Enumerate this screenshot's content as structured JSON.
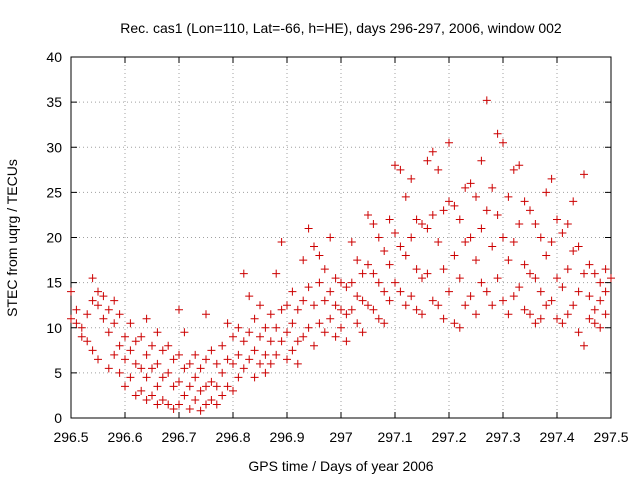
{
  "chart_data": {
    "type": "scatter",
    "title": "Rec. cas1 (Lon=110, Lat=-66, h=HE), days 296-297, 2006, window 002",
    "xlabel": "GPS time / Days of year 2006",
    "ylabel": "STEC from uqrg / TECUs",
    "xlim": [
      296.5,
      297.5
    ],
    "ylim": [
      0,
      40
    ],
    "x_ticks": [
      296.5,
      296.6,
      296.7,
      296.8,
      296.9,
      297,
      297.1,
      297.2,
      297.3,
      297.4,
      297.5
    ],
    "x_tick_labels": [
      "296.5",
      "296.6",
      "296.7",
      "296.8",
      "296.9",
      "297",
      "297.1",
      "297.2",
      "297.3",
      "297.4",
      "297.5"
    ],
    "y_ticks": [
      0,
      5,
      10,
      15,
      20,
      25,
      30,
      35,
      40
    ],
    "y_tick_labels": [
      "0",
      "5",
      "10",
      "15",
      "20",
      "25",
      "30",
      "35",
      "40"
    ],
    "grid": true,
    "marker": "plus",
    "color": "#cc0000",
    "points": [
      [
        296.5,
        14.0
      ],
      [
        296.5,
        11.0
      ],
      [
        296.51,
        10.5
      ],
      [
        296.51,
        12.0
      ],
      [
        296.52,
        9.0
      ],
      [
        296.52,
        10.0
      ],
      [
        296.53,
        11.5
      ],
      [
        296.53,
        8.5
      ],
      [
        296.54,
        15.5
      ],
      [
        296.54,
        13.0
      ],
      [
        296.54,
        7.5
      ],
      [
        296.55,
        12.5
      ],
      [
        296.55,
        14.0
      ],
      [
        296.55,
        6.5
      ],
      [
        296.56,
        13.5
      ],
      [
        296.56,
        11.0
      ],
      [
        296.57,
        12.0
      ],
      [
        296.57,
        9.5
      ],
      [
        296.57,
        5.5
      ],
      [
        296.58,
        13.0
      ],
      [
        296.58,
        10.5
      ],
      [
        296.58,
        7.0
      ],
      [
        296.59,
        11.5
      ],
      [
        296.59,
        8.0
      ],
      [
        296.59,
        5.0
      ],
      [
        296.6,
        9.0
      ],
      [
        296.6,
        6.5
      ],
      [
        296.6,
        3.5
      ],
      [
        296.61,
        10.5
      ],
      [
        296.61,
        7.5
      ],
      [
        296.61,
        4.5
      ],
      [
        296.62,
        8.5
      ],
      [
        296.62,
        6.0
      ],
      [
        296.62,
        2.5
      ],
      [
        296.63,
        9.0
      ],
      [
        296.63,
        5.5
      ],
      [
        296.63,
        3.0
      ],
      [
        296.64,
        11.0
      ],
      [
        296.64,
        7.0
      ],
      [
        296.64,
        4.5
      ],
      [
        296.64,
        2.0
      ],
      [
        296.65,
        8.0
      ],
      [
        296.65,
        5.5
      ],
      [
        296.65,
        2.5
      ],
      [
        296.66,
        9.5
      ],
      [
        296.66,
        6.0
      ],
      [
        296.66,
        3.5
      ],
      [
        296.66,
        1.5
      ],
      [
        296.67,
        7.5
      ],
      [
        296.67,
        4.5
      ],
      [
        296.67,
        2.0
      ],
      [
        296.68,
        8.0
      ],
      [
        296.68,
        5.0
      ],
      [
        296.68,
        1.5
      ],
      [
        296.69,
        6.5
      ],
      [
        296.69,
        3.5
      ],
      [
        296.69,
        1.0
      ],
      [
        296.7,
        12.0
      ],
      [
        296.7,
        7.0
      ],
      [
        296.7,
        4.0
      ],
      [
        296.7,
        1.5
      ],
      [
        296.71,
        9.5
      ],
      [
        296.71,
        5.5
      ],
      [
        296.71,
        2.5
      ],
      [
        296.72,
        6.0
      ],
      [
        296.72,
        3.5
      ],
      [
        296.72,
        1.0
      ],
      [
        296.73,
        7.0
      ],
      [
        296.73,
        4.5
      ],
      [
        296.73,
        2.0
      ],
      [
        296.74,
        5.5
      ],
      [
        296.74,
        3.0
      ],
      [
        296.74,
        0.8
      ],
      [
        296.75,
        11.5
      ],
      [
        296.75,
        6.5
      ],
      [
        296.75,
        3.5
      ],
      [
        296.75,
        1.5
      ],
      [
        296.76,
        7.5
      ],
      [
        296.76,
        4.0
      ],
      [
        296.76,
        2.0
      ],
      [
        296.77,
        6.0
      ],
      [
        296.77,
        3.5
      ],
      [
        296.77,
        1.5
      ],
      [
        296.78,
        8.0
      ],
      [
        296.78,
        5.0
      ],
      [
        296.78,
        2.5
      ],
      [
        296.79,
        10.5
      ],
      [
        296.79,
        6.5
      ],
      [
        296.79,
        3.5
      ],
      [
        296.8,
        9.0
      ],
      [
        296.8,
        6.0
      ],
      [
        296.8,
        3.0
      ],
      [
        296.81,
        10.0
      ],
      [
        296.81,
        7.0
      ],
      [
        296.81,
        4.5
      ],
      [
        296.82,
        16.0
      ],
      [
        296.82,
        8.5
      ],
      [
        296.82,
        5.5
      ],
      [
        296.83,
        13.5
      ],
      [
        296.83,
        9.5
      ],
      [
        296.83,
        6.5
      ],
      [
        296.84,
        11.0
      ],
      [
        296.84,
        7.5
      ],
      [
        296.84,
        4.5
      ],
      [
        296.85,
        12.5
      ],
      [
        296.85,
        9.0
      ],
      [
        296.85,
        6.0
      ],
      [
        296.86,
        10.0
      ],
      [
        296.86,
        7.0
      ],
      [
        296.86,
        5.0
      ],
      [
        296.87,
        11.5
      ],
      [
        296.87,
        8.5
      ],
      [
        296.87,
        6.0
      ],
      [
        296.88,
        16.0
      ],
      [
        296.88,
        10.0
      ],
      [
        296.88,
        7.0
      ],
      [
        296.89,
        19.5
      ],
      [
        296.89,
        12.0
      ],
      [
        296.89,
        8.5
      ],
      [
        296.9,
        12.5
      ],
      [
        296.9,
        9.5
      ],
      [
        296.9,
        6.5
      ],
      [
        296.91,
        14.0
      ],
      [
        296.91,
        10.5
      ],
      [
        296.91,
        7.5
      ],
      [
        296.92,
        12.0
      ],
      [
        296.92,
        8.5
      ],
      [
        296.92,
        6.0
      ],
      [
        296.93,
        17.5
      ],
      [
        296.93,
        13.0
      ],
      [
        296.93,
        9.0
      ],
      [
        296.94,
        21.0
      ],
      [
        296.94,
        14.5
      ],
      [
        296.94,
        10.0
      ],
      [
        296.95,
        19.0
      ],
      [
        296.95,
        12.5
      ],
      [
        296.95,
        8.0
      ],
      [
        296.96,
        18.0
      ],
      [
        296.96,
        15.0
      ],
      [
        296.96,
        10.5
      ],
      [
        296.97,
        16.5
      ],
      [
        296.97,
        13.0
      ],
      [
        296.97,
        9.5
      ],
      [
        296.98,
        20.0
      ],
      [
        296.98,
        14.0
      ],
      [
        296.98,
        11.0
      ],
      [
        296.99,
        15.5
      ],
      [
        296.99,
        12.5
      ],
      [
        296.99,
        9.0
      ],
      [
        297.0,
        15.0
      ],
      [
        297.0,
        12.0
      ],
      [
        297.0,
        10.0
      ],
      [
        297.01,
        14.5
      ],
      [
        297.01,
        11.5
      ],
      [
        297.01,
        8.5
      ],
      [
        297.02,
        19.5
      ],
      [
        297.02,
        15.0
      ],
      [
        297.02,
        12.0
      ],
      [
        297.03,
        17.5
      ],
      [
        297.03,
        13.5
      ],
      [
        297.03,
        10.5
      ],
      [
        297.04,
        16.0
      ],
      [
        297.04,
        13.0
      ],
      [
        297.04,
        9.5
      ],
      [
        297.05,
        22.5
      ],
      [
        297.05,
        17.0
      ],
      [
        297.05,
        12.5
      ],
      [
        297.06,
        21.5
      ],
      [
        297.06,
        16.0
      ],
      [
        297.06,
        12.0
      ],
      [
        297.07,
        20.0
      ],
      [
        297.07,
        15.0
      ],
      [
        297.07,
        11.0
      ],
      [
        297.08,
        18.5
      ],
      [
        297.08,
        14.0
      ],
      [
        297.08,
        10.5
      ],
      [
        297.09,
        22.0
      ],
      [
        297.09,
        17.0
      ],
      [
        297.09,
        13.0
      ],
      [
        297.1,
        28.0
      ],
      [
        297.1,
        20.5
      ],
      [
        297.1,
        15.0
      ],
      [
        297.11,
        27.5
      ],
      [
        297.11,
        19.0
      ],
      [
        297.11,
        14.0
      ],
      [
        297.12,
        24.5
      ],
      [
        297.12,
        18.0
      ],
      [
        297.12,
        12.5
      ],
      [
        297.13,
        26.5
      ],
      [
        297.13,
        20.0
      ],
      [
        297.13,
        13.5
      ],
      [
        297.14,
        22.0
      ],
      [
        297.14,
        16.5
      ],
      [
        297.14,
        12.0
      ],
      [
        297.15,
        21.5
      ],
      [
        297.15,
        15.5
      ],
      [
        297.15,
        11.5
      ],
      [
        297.16,
        28.5
      ],
      [
        297.16,
        21.0
      ],
      [
        297.16,
        16.0
      ],
      [
        297.17,
        29.5
      ],
      [
        297.17,
        22.5
      ],
      [
        297.17,
        13.0
      ],
      [
        297.18,
        27.5
      ],
      [
        297.18,
        19.5
      ],
      [
        297.18,
        12.5
      ],
      [
        297.19,
        23.0
      ],
      [
        297.19,
        16.5
      ],
      [
        297.19,
        11.0
      ],
      [
        297.2,
        30.5
      ],
      [
        297.2,
        24.0
      ],
      [
        297.2,
        14.0
      ],
      [
        297.21,
        23.5
      ],
      [
        297.21,
        18.0
      ],
      [
        297.21,
        10.5
      ],
      [
        297.22,
        22.0
      ],
      [
        297.22,
        15.5
      ],
      [
        297.22,
        10.0
      ],
      [
        297.23,
        25.5
      ],
      [
        297.23,
        19.5
      ],
      [
        297.23,
        12.5
      ],
      [
        297.24,
        26.0
      ],
      [
        297.24,
        20.0
      ],
      [
        297.24,
        13.5
      ],
      [
        297.25,
        24.5
      ],
      [
        297.25,
        17.5
      ],
      [
        297.25,
        11.5
      ],
      [
        297.26,
        28.5
      ],
      [
        297.26,
        21.0
      ],
      [
        297.26,
        15.0
      ],
      [
        297.27,
        35.2
      ],
      [
        297.27,
        23.0
      ],
      [
        297.27,
        14.0
      ],
      [
        297.28,
        25.5
      ],
      [
        297.28,
        19.0
      ],
      [
        297.28,
        12.5
      ],
      [
        297.29,
        31.5
      ],
      [
        297.29,
        22.5
      ],
      [
        297.29,
        15.5
      ],
      [
        297.3,
        30.5
      ],
      [
        297.3,
        20.0
      ],
      [
        297.3,
        13.0
      ],
      [
        297.31,
        24.5
      ],
      [
        297.31,
        17.5
      ],
      [
        297.31,
        11.5
      ],
      [
        297.32,
        27.5
      ],
      [
        297.32,
        19.5
      ],
      [
        297.32,
        13.5
      ],
      [
        297.33,
        28.0
      ],
      [
        297.33,
        21.5
      ],
      [
        297.33,
        14.5
      ],
      [
        297.34,
        24.0
      ],
      [
        297.34,
        17.0
      ],
      [
        297.34,
        12.0
      ],
      [
        297.35,
        23.0
      ],
      [
        297.35,
        16.0
      ],
      [
        297.35,
        11.5
      ],
      [
        297.36,
        21.5
      ],
      [
        297.36,
        15.5
      ],
      [
        297.36,
        10.5
      ],
      [
        297.37,
        20.0
      ],
      [
        297.37,
        14.0
      ],
      [
        297.37,
        11.0
      ],
      [
        297.38,
        25.0
      ],
      [
        297.38,
        18.0
      ],
      [
        297.38,
        12.5
      ],
      [
        297.39,
        26.5
      ],
      [
        297.39,
        19.5
      ],
      [
        297.39,
        13.0
      ],
      [
        297.4,
        22.0
      ],
      [
        297.4,
        15.5
      ],
      [
        297.4,
        11.0
      ],
      [
        297.41,
        20.5
      ],
      [
        297.41,
        14.5
      ],
      [
        297.41,
        10.5
      ],
      [
        297.42,
        21.5
      ],
      [
        297.42,
        16.5
      ],
      [
        297.42,
        11.5
      ],
      [
        297.43,
        24.0
      ],
      [
        297.43,
        18.5
      ],
      [
        297.43,
        12.5
      ],
      [
        297.44,
        19.0
      ],
      [
        297.44,
        14.0
      ],
      [
        297.44,
        9.5
      ],
      [
        297.45,
        27.0
      ],
      [
        297.45,
        16.0
      ],
      [
        297.45,
        8.0
      ],
      [
        297.46,
        17.0
      ],
      [
        297.46,
        13.5
      ],
      [
        297.46,
        11.0
      ],
      [
        297.47,
        16.0
      ],
      [
        297.47,
        12.0
      ],
      [
        297.47,
        10.5
      ],
      [
        297.48,
        15.0
      ],
      [
        297.48,
        13.0
      ],
      [
        297.48,
        10.0
      ],
      [
        297.49,
        16.5
      ],
      [
        297.49,
        14.0
      ],
      [
        297.49,
        11.5
      ],
      [
        297.5,
        15.5
      ]
    ]
  }
}
